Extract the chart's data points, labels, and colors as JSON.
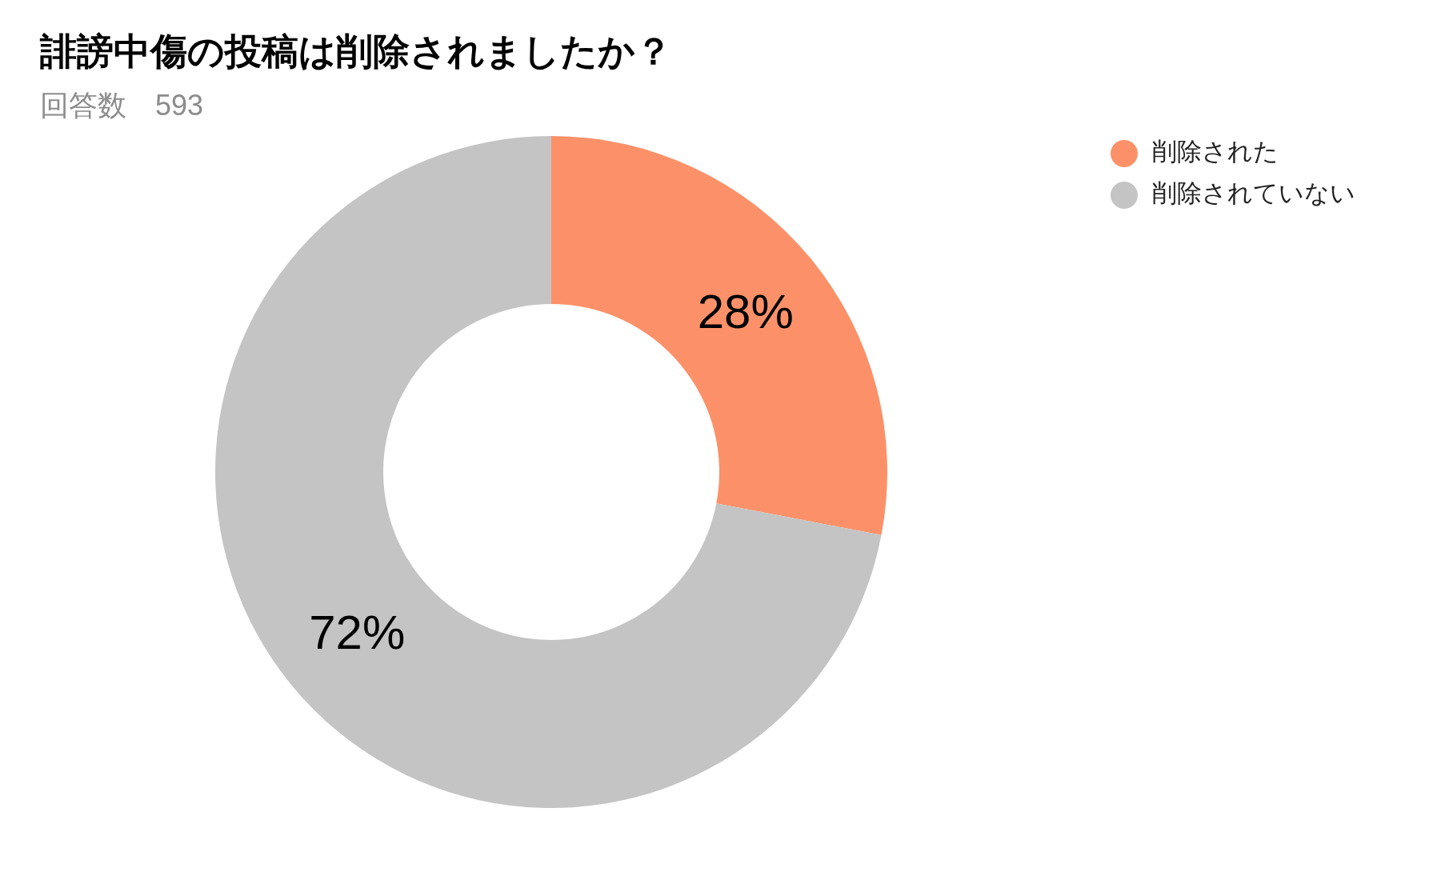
{
  "chart_data": {
    "type": "donut",
    "title": "誹謗中傷の投稿は削除されましたか？",
    "subtitle": "回答数　593",
    "categories": [
      "削除された",
      "削除されていない"
    ],
    "values": [
      28,
      72
    ],
    "colors": [
      "#fc9169",
      "#c4c4c4"
    ],
    "value_labels": [
      "28%",
      "72%"
    ],
    "legend": "top right"
  }
}
